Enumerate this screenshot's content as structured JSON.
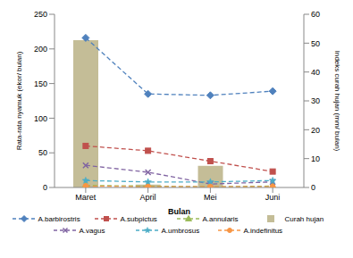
{
  "chart_data": {
    "type": "line",
    "x_label": "Bulan",
    "y_label": "Rata-rata nyamuk (ekor/ bulan)",
    "y2_label": "Indeks curah hujan (mm/ bulan)",
    "categories": [
      "Maret",
      "April",
      "Mei",
      "Juni"
    ],
    "ylim": [
      0,
      250
    ],
    "yticks": [
      0,
      50,
      100,
      150,
      200,
      250
    ],
    "y2lim": [
      0,
      60
    ],
    "y2ticks": [
      0,
      10,
      20,
      30,
      40,
      50,
      60
    ],
    "grid": false,
    "legend": "bottom",
    "series": [
      {
        "name": "A.barbirostris",
        "color": "#4f81bd",
        "marker": "diamond",
        "line_style": "dashed",
        "values": [
          216,
          135,
          133,
          139
        ]
      },
      {
        "name": "A.subpictus",
        "color": "#c0504d",
        "marker": "square",
        "line_style": "dashed",
        "values": [
          60,
          53,
          38,
          23
        ]
      },
      {
        "name": "A.annularis",
        "color": "#9bbb59",
        "marker": "triangle",
        "line_style": "dashed",
        "values": [
          3,
          2,
          1,
          2
        ]
      },
      {
        "name": "Curah hujan",
        "type": "bar",
        "axis": "y2",
        "color": "#c4bd97",
        "values": [
          51,
          1,
          7.5,
          0
        ]
      },
      {
        "name": "A.vagus",
        "color": "#8064a2",
        "marker": "cross",
        "line_style": "dashed",
        "values": [
          32,
          22,
          5,
          8
        ]
      },
      {
        "name": "A.umbrosus",
        "color": "#4bacc6",
        "marker": "star",
        "line_style": "dashed",
        "values": [
          10,
          8,
          8,
          10
        ]
      },
      {
        "name": "A.indefinitus",
        "color": "#f79646",
        "marker": "circle",
        "line_style": "dashed",
        "values": [
          2,
          1,
          1,
          1
        ]
      }
    ]
  }
}
